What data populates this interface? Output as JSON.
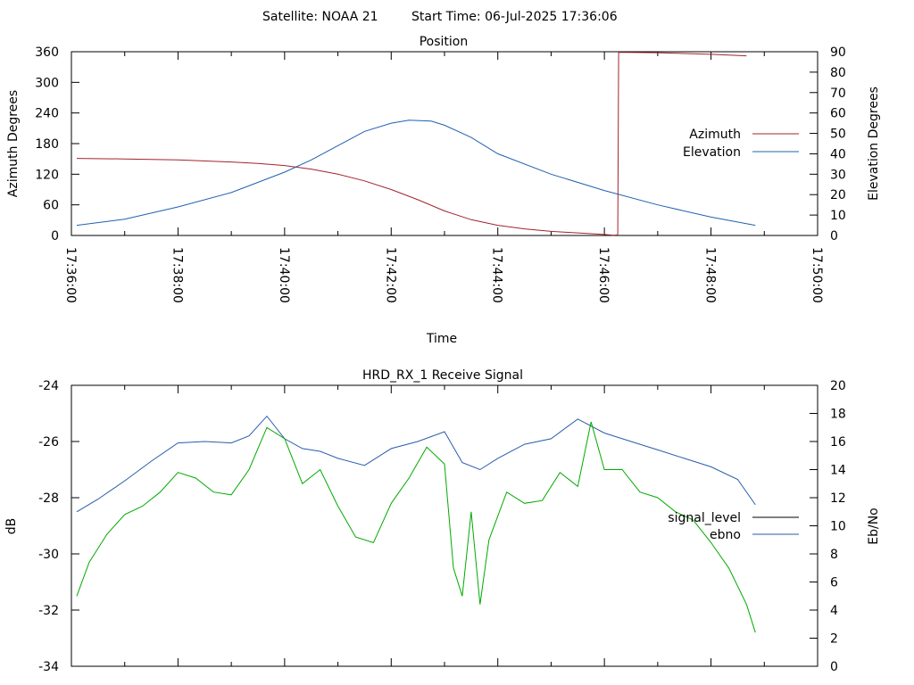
{
  "header": {
    "satellite_label": "Satellite: NOAA 21",
    "start_time_label": "Start Time: 06-Jul-2025 17:36:06"
  },
  "chart_data": [
    {
      "type": "line",
      "title": "Position",
      "xlabel": "Time",
      "ylabel": "Azimuth Degrees",
      "y2label": "Elevation Degrees",
      "xlim": [
        "17:36:00",
        "17:50:00"
      ],
      "x_ticks": [
        "17:36:00",
        "17:38:00",
        "17:40:00",
        "17:42:00",
        "17:44:00",
        "17:46:00",
        "17:48:00",
        "17:50:00"
      ],
      "ylim": [
        0,
        360
      ],
      "y_ticks": [
        0,
        60,
        120,
        180,
        240,
        300,
        360
      ],
      "y2lim": [
        0,
        90
      ],
      "y2_ticks": [
        0,
        10,
        20,
        30,
        40,
        50,
        60,
        70,
        80,
        90
      ],
      "legend_position": "right",
      "series": [
        {
          "name": "Azimuth",
          "axis": "left",
          "color": "#a0242c",
          "points": [
            [
              "17:36:06",
              151
            ],
            [
              "17:37:00",
              150
            ],
            [
              "17:38:00",
              148
            ],
            [
              "17:39:00",
              144
            ],
            [
              "17:39:30",
              141
            ],
            [
              "17:40:00",
              137
            ],
            [
              "17:40:30",
              130
            ],
            [
              "17:41:00",
              120
            ],
            [
              "17:41:30",
              107
            ],
            [
              "17:42:00",
              90
            ],
            [
              "17:42:30",
              70
            ],
            [
              "17:43:00",
              48
            ],
            [
              "17:43:30",
              31
            ],
            [
              "17:44:00",
              20
            ],
            [
              "17:44:30",
              13
            ],
            [
              "17:45:00",
              8
            ],
            [
              "17:45:30",
              5
            ],
            [
              "17:46:00",
              2
            ],
            [
              "17:46:10",
              0.5
            ],
            [
              "17:46:15",
              1
            ],
            [
              "17:46:16",
              359
            ],
            [
              "17:47:00",
              358
            ],
            [
              "17:48:00",
              355
            ],
            [
              "17:48:40",
              352
            ]
          ]
        },
        {
          "name": "Elevation",
          "axis": "right",
          "color": "#2060b0",
          "points": [
            [
              "17:36:06",
              5
            ],
            [
              "17:37:00",
              8
            ],
            [
              "17:38:00",
              14
            ],
            [
              "17:39:00",
              21
            ],
            [
              "17:40:00",
              31
            ],
            [
              "17:40:30",
              37
            ],
            [
              "17:41:00",
              44
            ],
            [
              "17:41:30",
              51
            ],
            [
              "17:42:00",
              55
            ],
            [
              "17:42:20",
              56.5
            ],
            [
              "17:42:45",
              56
            ],
            [
              "17:43:00",
              54
            ],
            [
              "17:43:30",
              48
            ],
            [
              "17:44:00",
              40
            ],
            [
              "17:45:00",
              30
            ],
            [
              "17:46:00",
              22
            ],
            [
              "17:47:00",
              15
            ],
            [
              "17:48:00",
              9
            ],
            [
              "17:48:50",
              5
            ]
          ]
        }
      ]
    },
    {
      "type": "line",
      "title": "HRD_RX_1 Receive Signal",
      "xlabel": "",
      "ylabel": "dB",
      "y2label": "Eb/No",
      "xlim": [
        "17:36:00",
        "17:50:00"
      ],
      "ylim": [
        -34,
        -24
      ],
      "y_ticks": [
        -34,
        -32,
        -30,
        -28,
        -26,
        -24
      ],
      "y2lim": [
        0,
        20
      ],
      "y2_ticks": [
        0,
        2,
        4,
        6,
        8,
        10,
        12,
        14,
        16,
        18,
        20
      ],
      "legend_position": "right",
      "series": [
        {
          "name": "signal_level",
          "axis": "left",
          "color": "#000000",
          "points": []
        },
        {
          "name": "ebno",
          "axis": "right",
          "color": "#2a5caa",
          "points": [
            [
              "17:36:06",
              11.0
            ],
            [
              "17:36:30",
              11.9
            ],
            [
              "17:37:00",
              13.2
            ],
            [
              "17:37:30",
              14.6
            ],
            [
              "17:38:00",
              15.9
            ],
            [
              "17:38:30",
              16.0
            ],
            [
              "17:39:00",
              15.9
            ],
            [
              "17:39:20",
              16.4
            ],
            [
              "17:39:40",
              17.8
            ],
            [
              "17:40:00",
              16.2
            ],
            [
              "17:40:20",
              15.5
            ],
            [
              "17:40:40",
              15.3
            ],
            [
              "17:41:00",
              14.8
            ],
            [
              "17:41:30",
              14.3
            ],
            [
              "17:42:00",
              15.5
            ],
            [
              "17:42:30",
              16.0
            ],
            [
              "17:43:00",
              16.7
            ],
            [
              "17:43:20",
              14.5
            ],
            [
              "17:43:40",
              14.0
            ],
            [
              "17:44:00",
              14.8
            ],
            [
              "17:44:30",
              15.8
            ],
            [
              "17:45:00",
              16.2
            ],
            [
              "17:45:30",
              17.6
            ],
            [
              "17:46:00",
              16.6
            ],
            [
              "17:46:30",
              16.0
            ],
            [
              "17:47:00",
              15.4
            ],
            [
              "17:47:30",
              14.8
            ],
            [
              "17:48:00",
              14.2
            ],
            [
              "17:48:30",
              13.3
            ],
            [
              "17:48:50",
              11.5
            ]
          ]
        },
        {
          "name": "",
          "axis": "left",
          "color": "#00aa00",
          "points": [
            [
              "17:36:06",
              -31.5
            ],
            [
              "17:36:20",
              -30.3
            ],
            [
              "17:36:40",
              -29.3
            ],
            [
              "17:37:00",
              -28.6
            ],
            [
              "17:37:20",
              -28.3
            ],
            [
              "17:37:40",
              -27.8
            ],
            [
              "17:38:00",
              -27.1
            ],
            [
              "17:38:20",
              -27.3
            ],
            [
              "17:38:40",
              -27.8
            ],
            [
              "17:39:00",
              -27.9
            ],
            [
              "17:39:20",
              -27.0
            ],
            [
              "17:39:40",
              -25.5
            ],
            [
              "17:40:00",
              -25.9
            ],
            [
              "17:40:20",
              -27.5
            ],
            [
              "17:40:40",
              -27.0
            ],
            [
              "17:41:00",
              -28.3
            ],
            [
              "17:41:20",
              -29.4
            ],
            [
              "17:41:40",
              -29.6
            ],
            [
              "17:42:00",
              -28.2
            ],
            [
              "17:42:20",
              -27.3
            ],
            [
              "17:42:40",
              -26.2
            ],
            [
              "17:43:00",
              -26.8
            ],
            [
              "17:43:10",
              -30.5
            ],
            [
              "17:43:20",
              -31.5
            ],
            [
              "17:43:30",
              -28.5
            ],
            [
              "17:43:40",
              -31.8
            ],
            [
              "17:43:50",
              -29.5
            ],
            [
              "17:44:10",
              -27.8
            ],
            [
              "17:44:30",
              -28.2
            ],
            [
              "17:44:50",
              -28.1
            ],
            [
              "17:45:10",
              -27.1
            ],
            [
              "17:45:30",
              -27.6
            ],
            [
              "17:45:45",
              -25.3
            ],
            [
              "17:46:00",
              -27.0
            ],
            [
              "17:46:20",
              -27.0
            ],
            [
              "17:46:40",
              -27.8
            ],
            [
              "17:47:00",
              -28.0
            ],
            [
              "17:47:20",
              -28.5
            ],
            [
              "17:47:40",
              -28.8
            ],
            [
              "17:48:00",
              -29.6
            ],
            [
              "17:48:20",
              -30.5
            ],
            [
              "17:48:40",
              -31.8
            ],
            [
              "17:48:50",
              -32.8
            ]
          ]
        }
      ]
    }
  ]
}
